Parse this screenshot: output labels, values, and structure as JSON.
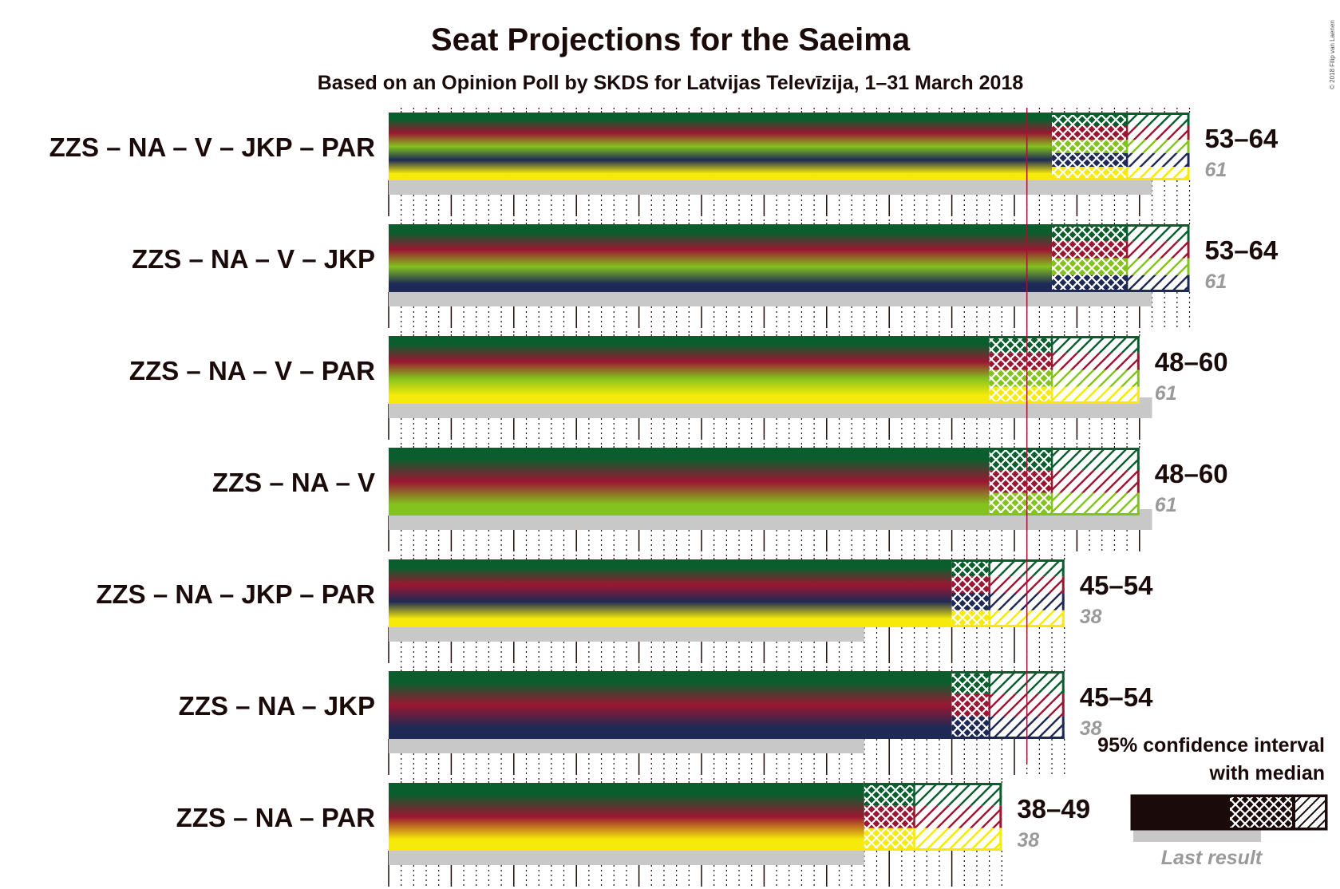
{
  "chart_data": {
    "type": "bar",
    "title": "Seat Projections for the Saeima",
    "subtitle": "Based on an Opinion Poll by SKDS for Latvijas Televīzija, 1–31 March 2018",
    "copyright": "© 2018 Filip van Laenen",
    "majority_line": 51,
    "x_range": [
      0,
      64
    ],
    "party_colors": {
      "ZZS": "#0a5e2e",
      "NA": "#9b1632",
      "V": "#84c21e",
      "JKP": "#1e2a55",
      "PAR": "#f5ea0a"
    },
    "coalitions": [
      {
        "label": "ZZS – NA – V – JKP – PAR",
        "parties": [
          "ZZS",
          "NA",
          "V",
          "JKP",
          "PAR"
        ],
        "low": 53,
        "median": 59,
        "high": 64,
        "range_label": "53–64",
        "last_result": 61,
        "last_label": "61"
      },
      {
        "label": "ZZS – NA – V – JKP",
        "parties": [
          "ZZS",
          "NA",
          "V",
          "JKP"
        ],
        "low": 53,
        "median": 59,
        "high": 64,
        "range_label": "53–64",
        "last_result": 61,
        "last_label": "61"
      },
      {
        "label": "ZZS – NA – V – PAR",
        "parties": [
          "ZZS",
          "NA",
          "V",
          "PAR"
        ],
        "low": 48,
        "median": 53,
        "high": 60,
        "range_label": "48–60",
        "last_result": 61,
        "last_label": "61"
      },
      {
        "label": "ZZS – NA – V",
        "parties": [
          "ZZS",
          "NA",
          "V"
        ],
        "low": 48,
        "median": 53,
        "high": 60,
        "range_label": "48–60",
        "last_result": 61,
        "last_label": "61"
      },
      {
        "label": "ZZS – NA – JKP – PAR",
        "parties": [
          "ZZS",
          "NA",
          "JKP",
          "PAR"
        ],
        "low": 45,
        "median": 48,
        "high": 54,
        "range_label": "45–54",
        "last_result": 38,
        "last_label": "38"
      },
      {
        "label": "ZZS – NA – JKP",
        "parties": [
          "ZZS",
          "NA",
          "JKP"
        ],
        "low": 45,
        "median": 48,
        "high": 54,
        "range_label": "45–54",
        "last_result": 38,
        "last_label": "38"
      },
      {
        "label": "ZZS – NA – PAR",
        "parties": [
          "ZZS",
          "NA",
          "PAR"
        ],
        "low": 38,
        "median": 42,
        "high": 49,
        "range_label": "38–49",
        "last_result": 38,
        "last_label": "38"
      }
    ],
    "legend": {
      "ci_label_line1": "95% confidence interval",
      "ci_label_line2": "with median",
      "last_result_label": "Last result"
    }
  }
}
